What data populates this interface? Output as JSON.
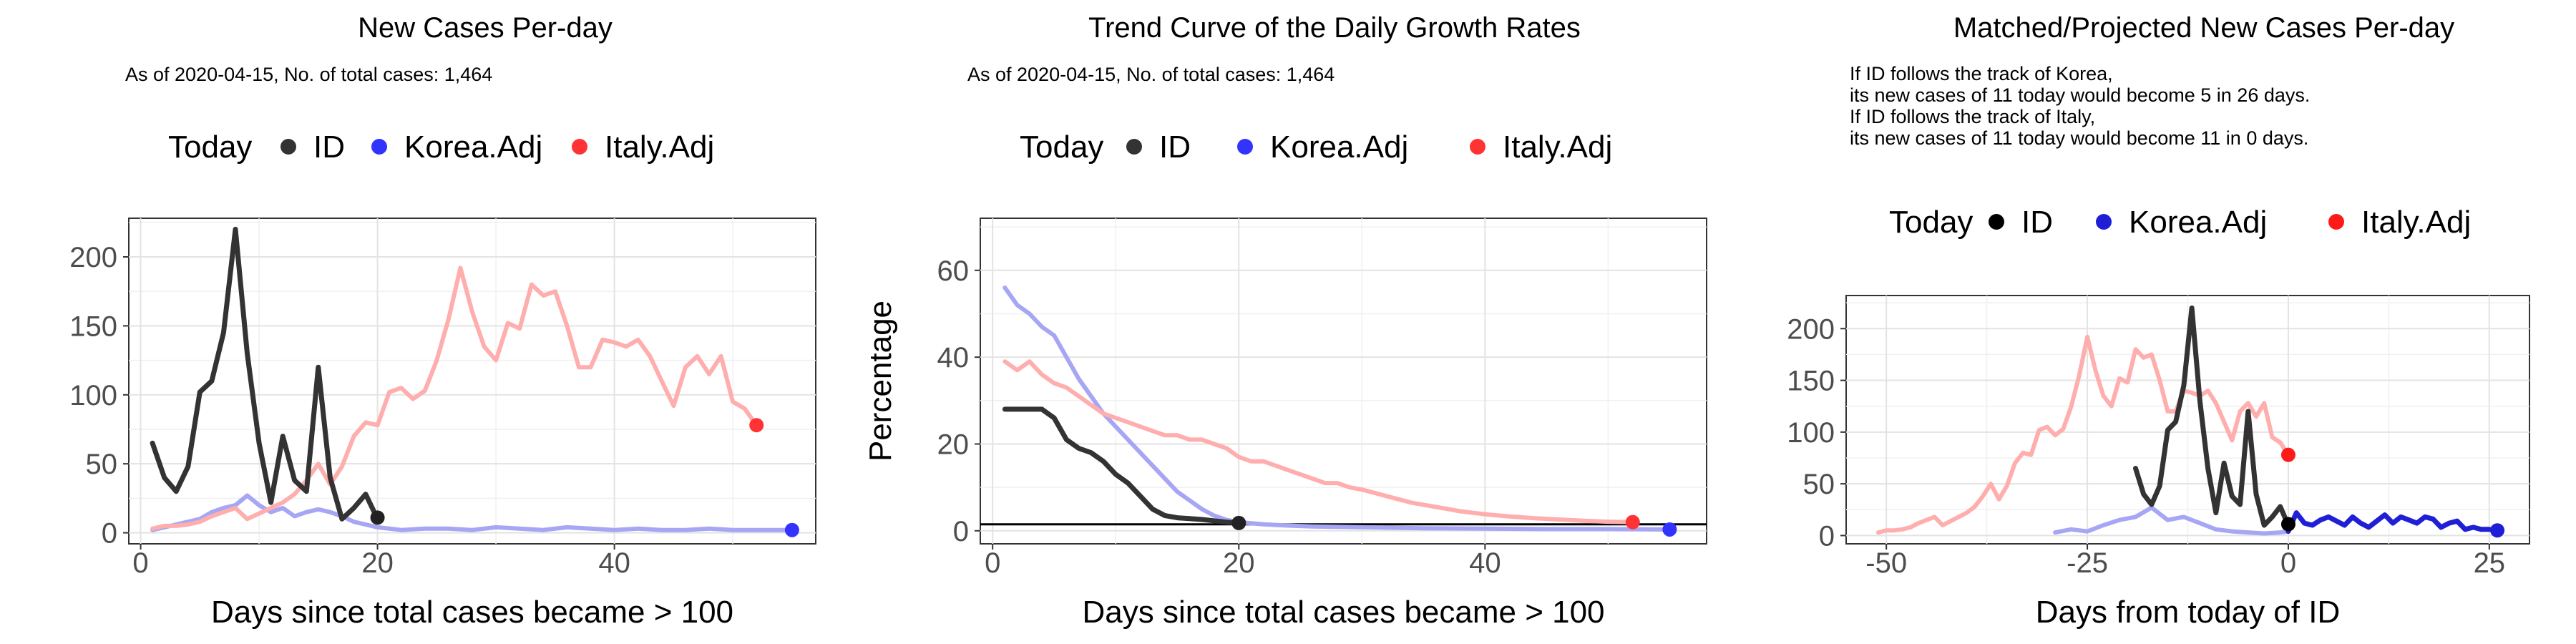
{
  "chart_data": [
    {
      "type": "line",
      "title": "New Cases Per-day",
      "subtitle": "As of 2020-04-15, No. of total cases: 1,464",
      "xlabel": "Days since total cases became > 100",
      "ylabel": "",
      "xlim": [
        -1,
        57
      ],
      "ylim": [
        -8,
        228
      ],
      "xticks": [
        0,
        20,
        40
      ],
      "yticks": [
        0,
        50,
        100,
        150,
        200
      ],
      "legend": {
        "title": "Today",
        "position": "top",
        "entries": [
          "ID",
          "Korea.Adj",
          "Italy.Adj"
        ]
      },
      "series": [
        {
          "name": "Korea.Adj",
          "color": "#a6a6f5",
          "x": [
            1,
            2,
            3,
            4,
            5,
            6,
            7,
            8,
            9,
            10,
            11,
            12,
            13,
            14,
            15,
            16,
            17,
            18,
            19,
            20,
            22,
            24,
            26,
            28,
            30,
            32,
            34,
            36,
            38,
            40,
            42,
            44,
            46,
            48,
            50,
            52,
            55
          ],
          "y": [
            2,
            4,
            6,
            8,
            10,
            15,
            18,
            20,
            27,
            20,
            15,
            18,
            12,
            15,
            17,
            15,
            12,
            8,
            6,
            4,
            2,
            3,
            3,
            2,
            4,
            3,
            2,
            4,
            3,
            2,
            3,
            2,
            2,
            3,
            2,
            2,
            2
          ]
        },
        {
          "name": "Italy.Adj",
          "color": "#ffaeae",
          "x": [
            1,
            2,
            3,
            4,
            5,
            6,
            7,
            8,
            9,
            10,
            11,
            12,
            13,
            14,
            15,
            16,
            17,
            18,
            19,
            20,
            21,
            22,
            23,
            24,
            25,
            26,
            27,
            28,
            29,
            30,
            31,
            32,
            33,
            34,
            35,
            36,
            37,
            38,
            39,
            40,
            41,
            42,
            43,
            44,
            45,
            46,
            47,
            48,
            49,
            50,
            51,
            52
          ],
          "y": [
            3,
            5,
            5,
            6,
            8,
            12,
            15,
            18,
            10,
            14,
            18,
            22,
            28,
            38,
            50,
            35,
            48,
            70,
            80,
            78,
            102,
            105,
            97,
            103,
            125,
            155,
            192,
            160,
            135,
            125,
            152,
            148,
            180,
            172,
            175,
            150,
            120,
            120,
            140,
            138,
            135,
            140,
            128,
            110,
            92,
            120,
            128,
            115,
            128,
            95,
            90,
            78
          ]
        },
        {
          "name": "ID",
          "color": "#333333",
          "x": [
            1,
            2,
            3,
            4,
            5,
            6,
            7,
            8,
            9,
            10,
            11,
            12,
            13,
            14,
            15,
            16,
            17,
            18,
            19,
            20
          ],
          "y": [
            65,
            40,
            30,
            48,
            102,
            110,
            145,
            220,
            130,
            65,
            22,
            70,
            38,
            30,
            120,
            40,
            10,
            18,
            28,
            10
          ]
        }
      ],
      "today_points": [
        {
          "name": "ID",
          "x": 20,
          "y": 11,
          "color": "#222222"
        },
        {
          "name": "Korea.Adj",
          "x": 55,
          "y": 2,
          "color": "#3333ff"
        },
        {
          "name": "Italy.Adj",
          "x": 52,
          "y": 78,
          "color": "#ff3333"
        }
      ]
    },
    {
      "type": "line",
      "title": "Trend Curve of the Daily Growth Rates",
      "subtitle": "As of 2020-04-15, No. of total cases: 1,464",
      "xlabel": "Days since total cases became > 100",
      "ylabel": "Percentage",
      "xlim": [
        -1,
        58
      ],
      "ylim": [
        -3,
        72
      ],
      "xticks": [
        0,
        20,
        40
      ],
      "yticks": [
        0,
        20,
        40,
        60
      ],
      "hline": 1.5,
      "legend": {
        "title": "Today",
        "position": "top",
        "entries": [
          "ID",
          "Korea.Adj",
          "Italy.Adj"
        ]
      },
      "series": [
        {
          "name": "Korea.Adj",
          "color": "#a6a6f5",
          "x": [
            1,
            2,
            3,
            4,
            5,
            6,
            7,
            8,
            9,
            10,
            11,
            12,
            13,
            14,
            15,
            16,
            17,
            18,
            19,
            20,
            22,
            24,
            26,
            28,
            30,
            35,
            40,
            45,
            50,
            55
          ],
          "y": [
            56,
            52,
            50,
            47,
            45,
            40,
            35,
            31,
            27,
            24,
            21,
            18,
            15,
            12,
            9,
            7,
            5,
            3.5,
            2.5,
            2,
            1.5,
            1.2,
            1,
            0.9,
            0.8,
            0.6,
            0.5,
            0.4,
            0.4,
            0.3
          ]
        },
        {
          "name": "Italy.Adj",
          "color": "#ffaeae",
          "x": [
            1,
            2,
            3,
            4,
            5,
            6,
            7,
            8,
            9,
            10,
            11,
            12,
            13,
            14,
            15,
            16,
            17,
            18,
            19,
            20,
            21,
            22,
            23,
            24,
            25,
            26,
            27,
            28,
            29,
            30,
            32,
            34,
            36,
            38,
            40,
            42,
            44,
            46,
            48,
            50,
            52
          ],
          "y": [
            39,
            37,
            39,
            36,
            34,
            33,
            31,
            29,
            27,
            26,
            25,
            24,
            23,
            22,
            22,
            21,
            21,
            20,
            19,
            17,
            16,
            16,
            15,
            14,
            13,
            12,
            11,
            11,
            10,
            9.5,
            8,
            6.5,
            5.5,
            4.5,
            3.8,
            3.3,
            2.9,
            2.6,
            2.3,
            2.1,
            2.0
          ]
        },
        {
          "name": "ID",
          "color": "#333333",
          "x": [
            1,
            2,
            3,
            4,
            5,
            6,
            7,
            8,
            9,
            10,
            11,
            12,
            13,
            14,
            15,
            16,
            17,
            18,
            19,
            20
          ],
          "y": [
            28,
            28,
            28,
            28,
            26,
            21,
            19,
            18,
            16,
            13,
            11,
            8,
            5,
            3.5,
            3,
            2.8,
            2.6,
            2.3,
            2,
            1.8
          ]
        }
      ],
      "today_points": [
        {
          "name": "ID",
          "x": 20,
          "y": 1.8,
          "color": "#222222"
        },
        {
          "name": "Korea.Adj",
          "x": 55,
          "y": 0.3,
          "color": "#3333ff"
        },
        {
          "name": "Italy.Adj",
          "x": 52,
          "y": 2.0,
          "color": "#ff3333"
        }
      ]
    },
    {
      "type": "line",
      "title": "Matched/Projected New Cases Per-day",
      "annotation": [
        "If ID follows the track of Korea,",
        "its new cases of 11 today would become 5 in 26 days.",
        "If ID follows the track of Italy,",
        "its new cases of 11 today would become 11 in 0 days."
      ],
      "xlabel": "Days from today of ID",
      "ylabel": "",
      "xlim": [
        -55,
        30
      ],
      "ylim": [
        -8,
        232
      ],
      "xticks": [
        -50,
        -25,
        0,
        25
      ],
      "yticks": [
        0,
        50,
        100,
        150,
        200
      ],
      "legend": {
        "title": "Today",
        "position": "top",
        "entries": [
          "ID",
          "Korea.Adj",
          "Italy.Adj"
        ]
      },
      "series": [
        {
          "name": "Italy.Adj",
          "color": "#ffaeae",
          "x": [
            -51,
            -50,
            -49,
            -48,
            -47,
            -46,
            -45,
            -44,
            -43,
            -42,
            -41,
            -40,
            -39,
            -38,
            -37,
            -36,
            -35,
            -34,
            -33,
            -32,
            -31,
            -30,
            -29,
            -28,
            -27,
            -26,
            -25,
            -24,
            -23,
            -22,
            -21,
            -20,
            -19,
            -18,
            -17,
            -16,
            -15,
            -14,
            -13,
            -12,
            -11,
            -10,
            -9,
            -8,
            -7,
            -6,
            -5,
            -4,
            -3,
            -2,
            -1,
            0
          ],
          "y": [
            3,
            5,
            5,
            6,
            8,
            12,
            15,
            18,
            10,
            14,
            18,
            22,
            28,
            38,
            50,
            35,
            48,
            70,
            80,
            78,
            102,
            105,
            97,
            103,
            125,
            155,
            192,
            160,
            135,
            125,
            152,
            148,
            180,
            172,
            175,
            150,
            120,
            120,
            140,
            138,
            135,
            140,
            128,
            110,
            92,
            120,
            128,
            115,
            128,
            95,
            90,
            78
          ]
        },
        {
          "name": "Korea.Adj",
          "color": "#a6a6f5",
          "x": [
            -29,
            -27,
            -25,
            -23,
            -21,
            -19,
            -17,
            -15,
            -13,
            -11,
            -9,
            -7,
            -5,
            -3,
            -1,
            0
          ],
          "y": [
            3,
            6,
            4,
            10,
            15,
            18,
            27,
            15,
            18,
            12,
            6,
            4,
            3,
            2,
            3,
            4
          ]
        },
        {
          "name": "Korea.Adj (projected)",
          "color": "#1f1fd6",
          "x": [
            0,
            1,
            2,
            3,
            4,
            5,
            6,
            7,
            8,
            9,
            10,
            11,
            12,
            13,
            14,
            15,
            16,
            17,
            18,
            19,
            20,
            21,
            22,
            23,
            24,
            25,
            26
          ],
          "y": [
            4,
            22,
            12,
            10,
            15,
            18,
            14,
            10,
            18,
            12,
            8,
            14,
            20,
            12,
            18,
            15,
            12,
            18,
            16,
            8,
            12,
            14,
            6,
            8,
            6,
            6,
            5
          ]
        },
        {
          "name": "ID",
          "color": "#333333",
          "x": [
            -19,
            -18,
            -17,
            -16,
            -15,
            -14,
            -13,
            -12,
            -11,
            -10,
            -9,
            -8,
            -7,
            -6,
            -5,
            -4,
            -3,
            -2,
            -1,
            0
          ],
          "y": [
            65,
            40,
            30,
            48,
            102,
            110,
            145,
            220,
            130,
            65,
            22,
            70,
            38,
            30,
            120,
            40,
            10,
            18,
            28,
            10
          ]
        }
      ],
      "today_points": [
        {
          "name": "ID",
          "x": 0,
          "y": 11,
          "color": "#000000"
        },
        {
          "name": "Korea.Adj",
          "x": 26,
          "y": 5,
          "color": "#1f1fd6"
        },
        {
          "name": "Italy.Adj",
          "x": 0,
          "y": 78,
          "color": "#ff1a1a"
        }
      ]
    }
  ]
}
